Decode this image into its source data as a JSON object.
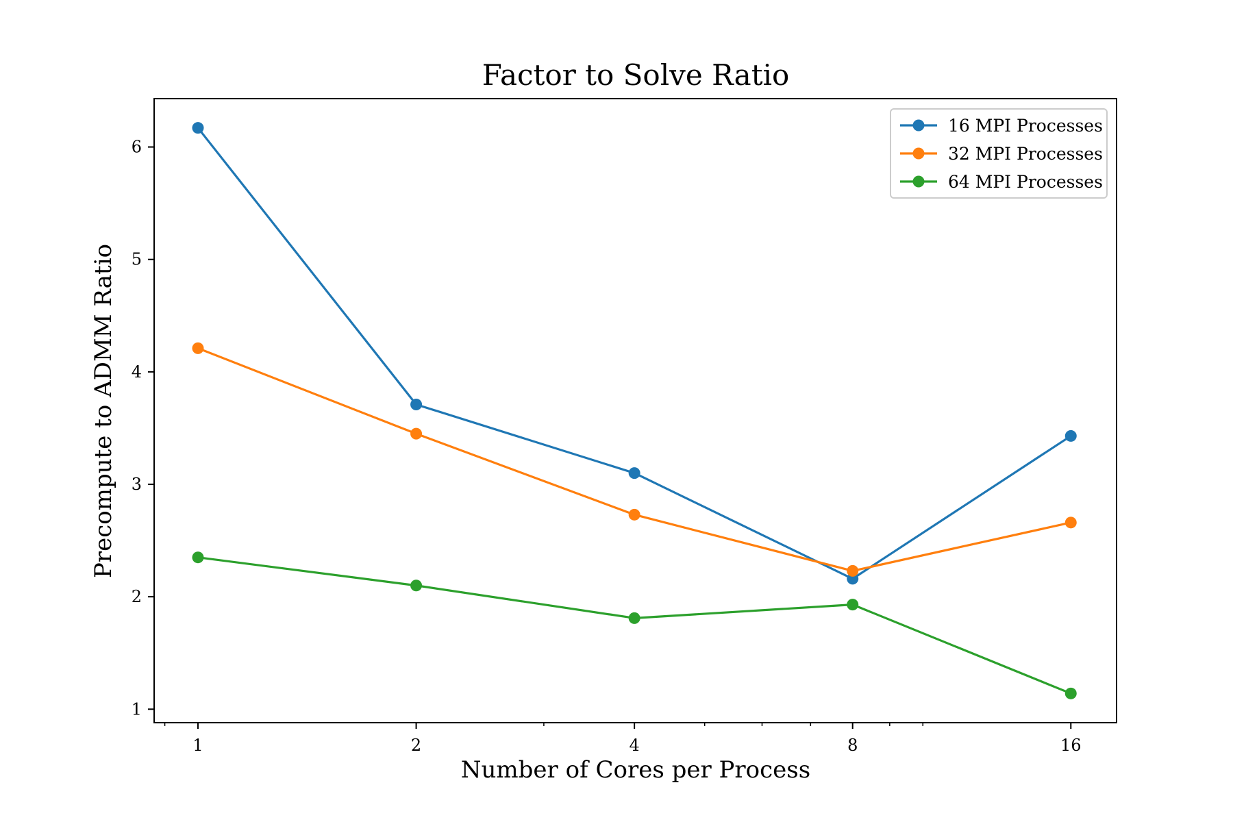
{
  "chart_data": {
    "type": "line",
    "title": "Factor to Solve Ratio",
    "xlabel": "Number of Cores per Process",
    "ylabel": "Precompute to ADMM Ratio",
    "x_scale": "log2",
    "x": [
      1,
      2,
      4,
      8,
      16
    ],
    "x_tick_labels": [
      "1",
      "2",
      "4",
      "8",
      "16"
    ],
    "y_ticks": [
      1,
      2,
      3,
      4,
      5,
      6
    ],
    "y_tick_labels": [
      "1",
      "2",
      "3",
      "4",
      "5",
      "6"
    ],
    "xlim": [
      0.87,
      18.5
    ],
    "ylim": [
      0.88,
      6.43
    ],
    "grid": false,
    "legend_position": "top-right",
    "series": [
      {
        "name": "16 MPI Processes",
        "color": "#1f77b4",
        "values": [
          6.17,
          3.71,
          3.1,
          2.16,
          3.43
        ]
      },
      {
        "name": "32 MPI Processes",
        "color": "#ff7f0e",
        "values": [
          4.21,
          3.45,
          2.73,
          2.23,
          2.66
        ]
      },
      {
        "name": "64 MPI Processes",
        "color": "#2ca02c",
        "values": [
          2.35,
          2.1,
          1.81,
          1.93,
          1.14
        ]
      }
    ]
  }
}
